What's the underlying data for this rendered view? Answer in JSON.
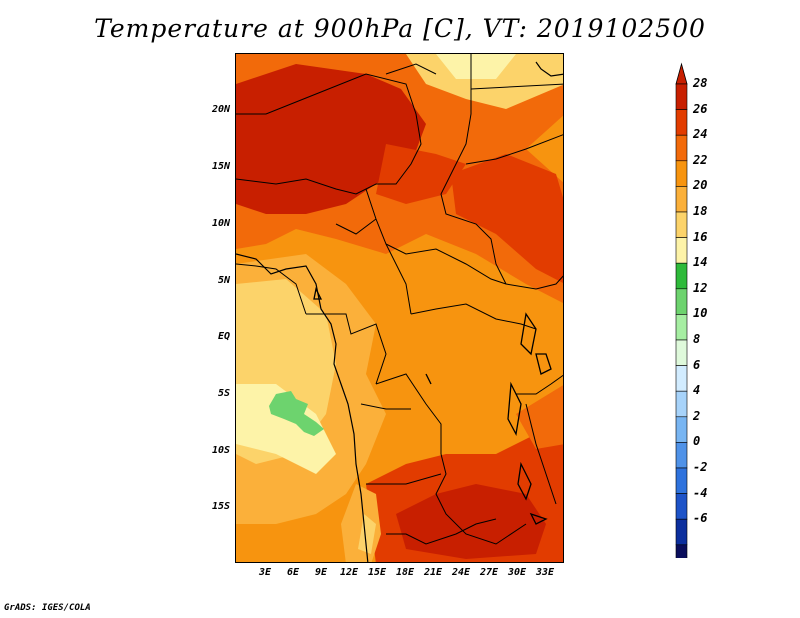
{
  "title": "Temperature at 900hPa [C], VT: 2019102500",
  "credit": "GrADS: IGES/COLA",
  "lat_ticks": [
    "20N",
    "15N",
    "10N",
    "5N",
    "EQ",
    "5S",
    "10S",
    "15S"
  ],
  "lon_ticks": [
    "3E",
    "6E",
    "9E",
    "12E",
    "15E",
    "18E",
    "21E",
    "24E",
    "27E",
    "30E",
    "33E"
  ],
  "colorbar": {
    "labels": [
      "28",
      "26",
      "24",
      "22",
      "20",
      "18",
      "16",
      "14",
      "12",
      "10",
      "8",
      "6",
      "4",
      "2",
      "0",
      "-2",
      "-4",
      "-6"
    ],
    "colors": [
      "#c81f00",
      "#e23c00",
      "#f26a0a",
      "#f7940f",
      "#fbb03a",
      "#fcd36a",
      "#fdf3a8",
      "#2eba3a",
      "#6dd36e",
      "#a6eea2",
      "#dff9db",
      "#d2ecff",
      "#a7d3fa",
      "#78b5f2",
      "#4f92e8",
      "#2e72dd",
      "#1d53c8",
      "#0c2f9e",
      "#0a0e5c"
    ],
    "top_arrow_color": "#c81f00",
    "bottom_arrow_color": "#dcdcf8"
  }
}
